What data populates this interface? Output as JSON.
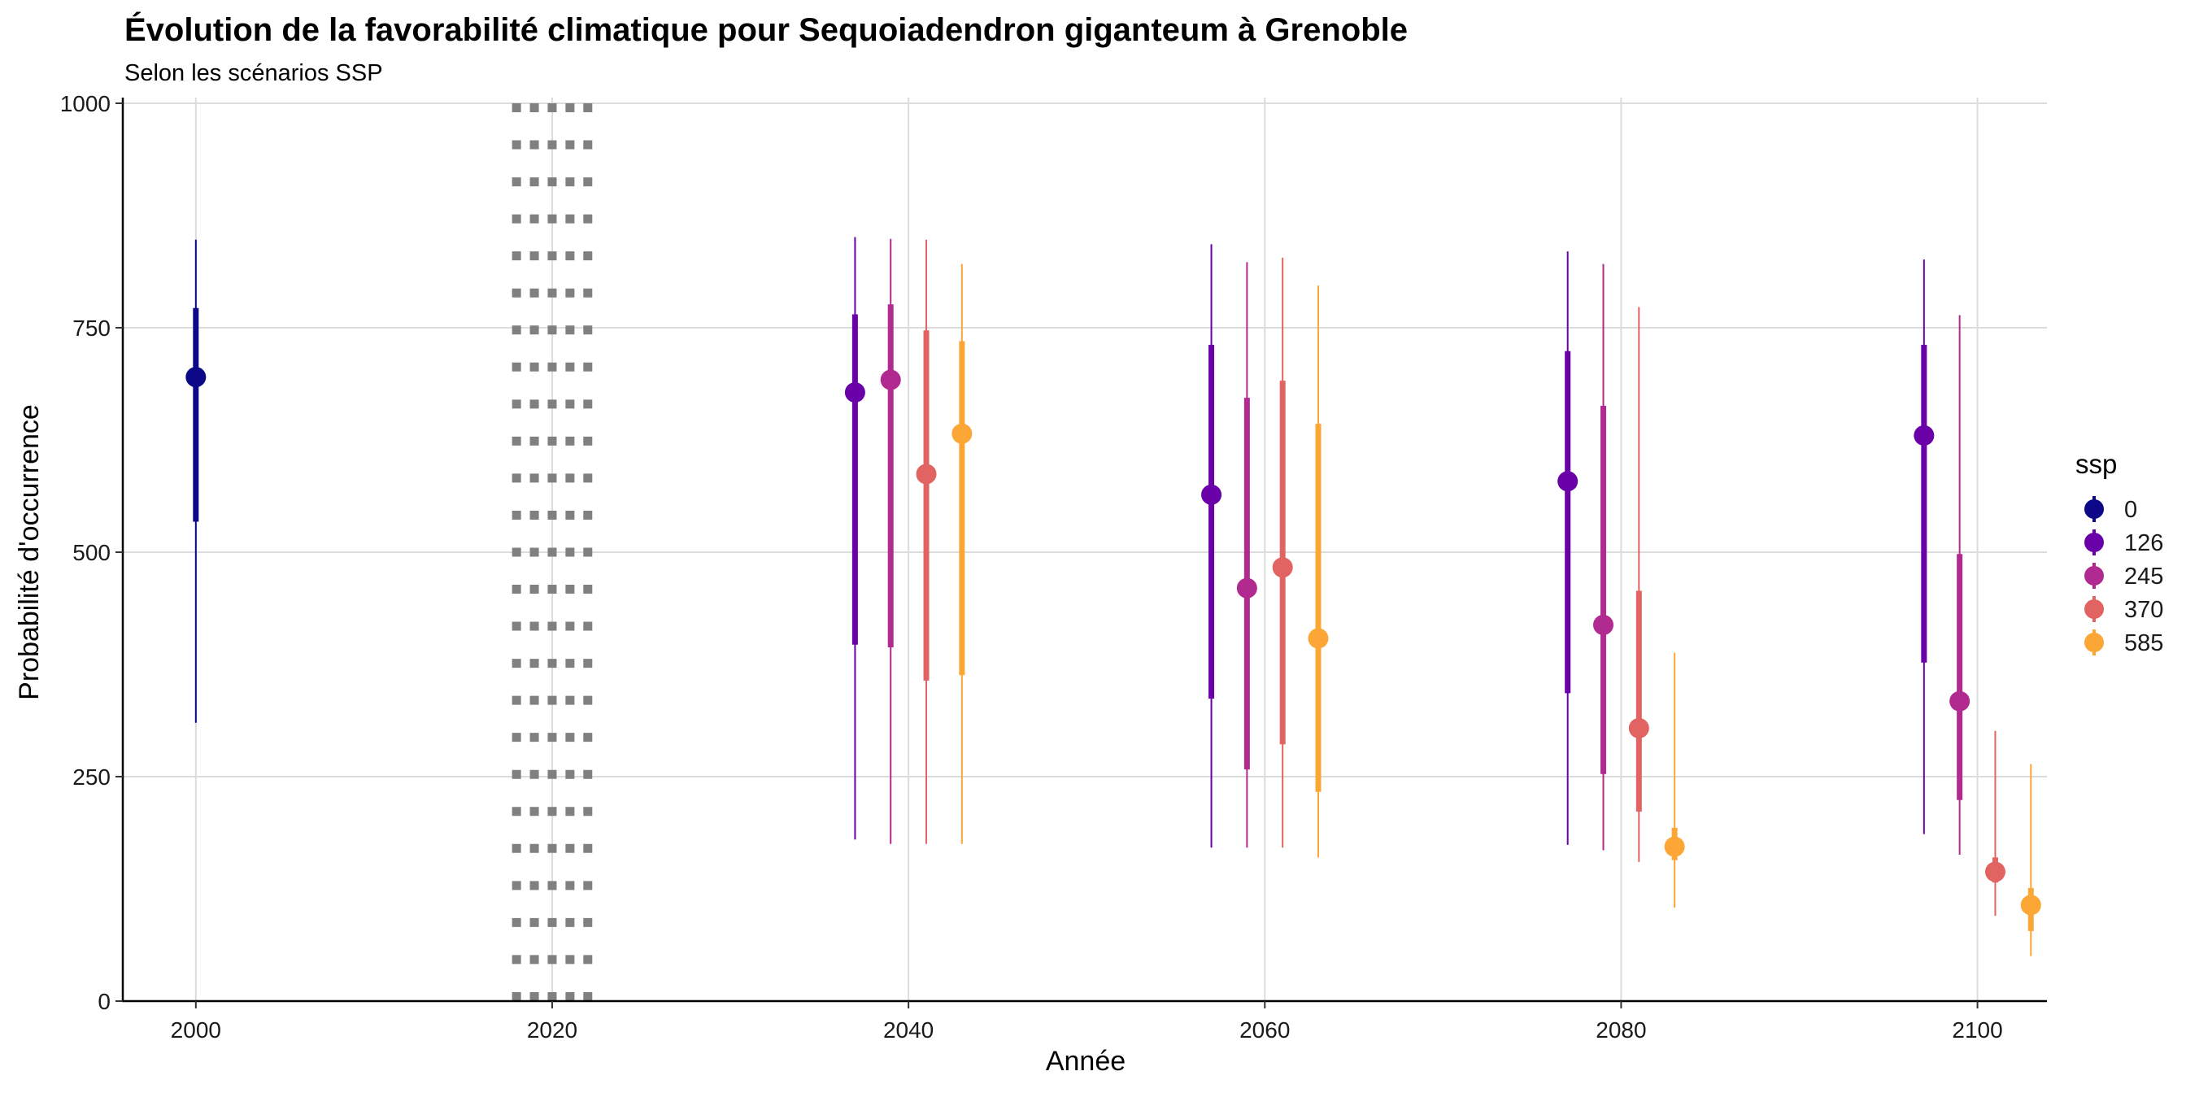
{
  "chart_data": {
    "type": "scatter",
    "title": "Évolution de la favorabilité climatique pour Sequoiadendron giganteum à Grenoble",
    "subtitle": "Selon les scénarios SSP",
    "xlabel": "Année",
    "ylabel": "Probabilité d'occurrence",
    "xlim": [
      1995.9,
      2103.9
    ],
    "ylim": [
      0,
      1000
    ],
    "x_ticks": [
      2000,
      2020,
      2040,
      2060,
      2080,
      2100
    ],
    "y_ticks": [
      0,
      250,
      500,
      750,
      1000
    ],
    "grid": true,
    "legend_title": "ssp",
    "legend_position": "right",
    "reference_lines_x": [
      2018,
      2019,
      2020,
      2021,
      2022
    ],
    "reference_line_color": "#808080",
    "series": [
      {
        "name": "0",
        "color": "#0d0887",
        "points": [
          {
            "x": 2000,
            "y": 695,
            "inner": [
              534,
              772
            ],
            "outer": [
              310,
              848
            ]
          }
        ]
      },
      {
        "name": "126",
        "color": "#6a00a8",
        "points": [
          {
            "x": 2037,
            "y": 678,
            "inner": [
              397,
              765
            ],
            "outer": [
              180,
              851
            ]
          },
          {
            "x": 2057,
            "y": 564,
            "inner": [
              337,
              731
            ],
            "outer": [
              171,
              843
            ]
          },
          {
            "x": 2077,
            "y": 579,
            "inner": [
              343,
              724
            ],
            "outer": [
              174,
              835
            ]
          },
          {
            "x": 2097,
            "y": 630,
            "inner": [
              377,
              731
            ],
            "outer": [
              186,
              826
            ]
          }
        ]
      },
      {
        "name": "245",
        "color": "#b12a90",
        "points": [
          {
            "x": 2039,
            "y": 692,
            "inner": [
              394,
              776
            ],
            "outer": [
              175,
              849
            ]
          },
          {
            "x": 2059,
            "y": 460,
            "inner": [
              258,
              672
            ],
            "outer": [
              171,
              823
            ]
          },
          {
            "x": 2079,
            "y": 419,
            "inner": [
              253,
              663
            ],
            "outer": [
              168,
              821
            ]
          },
          {
            "x": 2099,
            "y": 334,
            "inner": [
              224,
              498
            ],
            "outer": [
              163,
              764
            ]
          }
        ]
      },
      {
        "name": "370",
        "color": "#e16462",
        "points": [
          {
            "x": 2041,
            "y": 587,
            "inner": [
              357,
              747
            ],
            "outer": [
              175,
              848
            ]
          },
          {
            "x": 2061,
            "y": 483,
            "inner": [
              286,
              691
            ],
            "outer": [
              171,
              828
            ]
          },
          {
            "x": 2081,
            "y": 304,
            "inner": [
              211,
              457
            ],
            "outer": [
              155,
              773
            ]
          },
          {
            "x": 2101,
            "y": 144,
            "inner": [
              132,
              160
            ],
            "outer": [
              95,
              301
            ]
          }
        ]
      },
      {
        "name": "585",
        "color": "#fca636",
        "points": [
          {
            "x": 2043,
            "y": 632,
            "inner": [
              363,
              735
            ],
            "outer": [
              175,
              821
            ]
          },
          {
            "x": 2063,
            "y": 404,
            "inner": [
              233,
              643
            ],
            "outer": [
              160,
              797
            ]
          },
          {
            "x": 2083,
            "y": 172,
            "inner": [
              157,
              193
            ],
            "outer": [
              104,
              388
            ]
          },
          {
            "x": 2103,
            "y": 107,
            "inner": [
              78,
              126
            ],
            "outer": [
              50,
              264
            ]
          }
        ]
      }
    ]
  }
}
